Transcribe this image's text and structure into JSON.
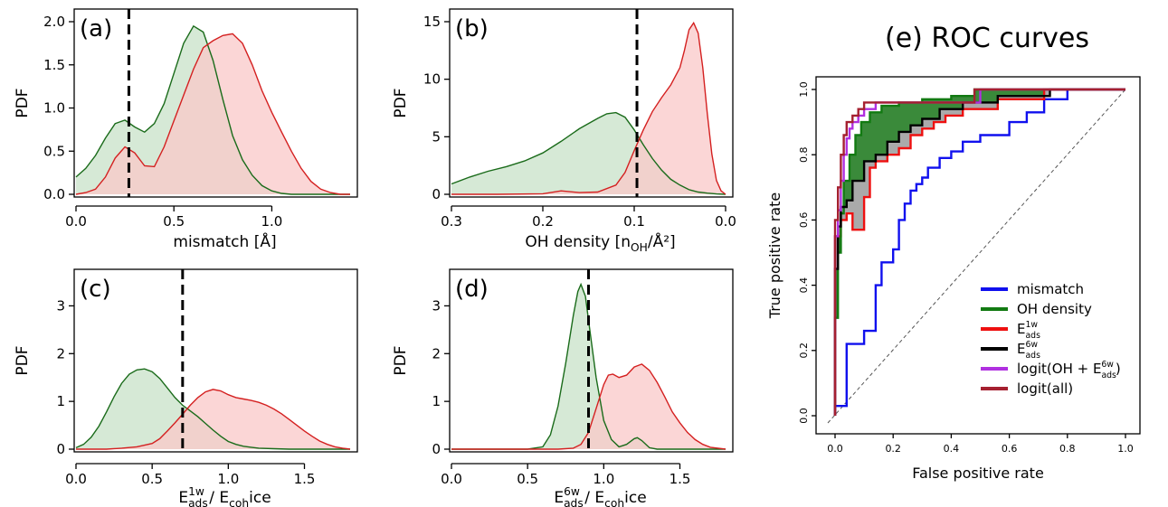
{
  "chart_data": [
    {
      "type": "area",
      "panel_label": "(a)",
      "xlabel": "mismatch [Å]",
      "ylabel": "PDF",
      "xlim": [
        0,
        1.4
      ],
      "ylim": [
        0,
        2.0
      ],
      "x_reversed": false,
      "xticks": [
        {
          "v": 0,
          "label": "0.0"
        },
        {
          "v": 0.5,
          "label": "0.5"
        },
        {
          "v": 1.0,
          "label": "1.0"
        }
      ],
      "yticks": [
        {
          "v": 0,
          "label": "0.0"
        },
        {
          "v": 0.5,
          "label": "0.5"
        },
        {
          "v": 1.0,
          "label": "1.0"
        },
        {
          "v": 1.5,
          "label": "1.5"
        },
        {
          "v": 2.0,
          "label": "2.0"
        }
      ],
      "threshold": 0.27,
      "series": [
        {
          "color": "#1a6b1a",
          "fill": "#c8e2c8",
          "x": [
            0,
            0.05,
            0.1,
            0.15,
            0.2,
            0.25,
            0.3,
            0.35,
            0.4,
            0.45,
            0.5,
            0.55,
            0.6,
            0.65,
            0.7,
            0.75,
            0.8,
            0.85,
            0.9,
            0.95,
            1.0,
            1.05,
            1.1,
            1.15,
            1.2,
            1.3,
            1.4
          ],
          "y": [
            0.2,
            0.3,
            0.45,
            0.65,
            0.82,
            0.86,
            0.78,
            0.72,
            0.82,
            1.05,
            1.4,
            1.75,
            1.95,
            1.88,
            1.55,
            1.1,
            0.68,
            0.4,
            0.22,
            0.1,
            0.04,
            0.01,
            0,
            0,
            0,
            0,
            0
          ]
        },
        {
          "color": "#d42020",
          "fill": "#f9c8c8",
          "x": [
            0,
            0.05,
            0.1,
            0.15,
            0.2,
            0.25,
            0.3,
            0.35,
            0.4,
            0.45,
            0.5,
            0.55,
            0.6,
            0.65,
            0.7,
            0.75,
            0.8,
            0.85,
            0.9,
            0.95,
            1.0,
            1.05,
            1.1,
            1.15,
            1.2,
            1.25,
            1.3,
            1.35,
            1.4
          ],
          "y": [
            0,
            0.02,
            0.06,
            0.2,
            0.42,
            0.55,
            0.48,
            0.33,
            0.32,
            0.55,
            0.85,
            1.15,
            1.45,
            1.7,
            1.78,
            1.84,
            1.86,
            1.75,
            1.5,
            1.2,
            0.95,
            0.72,
            0.5,
            0.3,
            0.15,
            0.06,
            0.02,
            0,
            0
          ]
        }
      ]
    },
    {
      "type": "area",
      "panel_label": "(b)",
      "xlabel": "OH density [n_OH/Å²]",
      "ylabel": "PDF",
      "xlim": [
        0.3,
        0.0
      ],
      "ylim": [
        0,
        15
      ],
      "x_reversed": true,
      "xticks": [
        {
          "v": 0.3,
          "label": "0.3"
        },
        {
          "v": 0.2,
          "label": "0.2"
        },
        {
          "v": 0.1,
          "label": "0.1"
        },
        {
          "v": 0.0,
          "label": "0.0"
        }
      ],
      "yticks": [
        {
          "v": 0,
          "label": "0"
        },
        {
          "v": 5,
          "label": "5"
        },
        {
          "v": 10,
          "label": "10"
        },
        {
          "v": 15,
          "label": "15"
        }
      ],
      "threshold": 0.097,
      "series": [
        {
          "color": "#1a6b1a",
          "fill": "#c8e2c8",
          "x": [
            0.3,
            0.28,
            0.26,
            0.24,
            0.22,
            0.2,
            0.18,
            0.16,
            0.14,
            0.13,
            0.12,
            0.11,
            0.1,
            0.09,
            0.08,
            0.07,
            0.06,
            0.05,
            0.04,
            0.03,
            0.02,
            0.01,
            0.0
          ],
          "y": [
            0.9,
            1.5,
            2.0,
            2.4,
            2.9,
            3.6,
            4.6,
            5.7,
            6.6,
            7.0,
            7.1,
            6.7,
            5.6,
            4.3,
            3.1,
            2.1,
            1.3,
            0.8,
            0.4,
            0.2,
            0.1,
            0.03,
            0
          ]
        },
        {
          "color": "#d42020",
          "fill": "#f9c8c8",
          "x": [
            0.3,
            0.25,
            0.2,
            0.18,
            0.16,
            0.14,
            0.12,
            0.11,
            0.1,
            0.09,
            0.08,
            0.07,
            0.06,
            0.05,
            0.045,
            0.04,
            0.035,
            0.03,
            0.025,
            0.02,
            0.015,
            0.01,
            0.005,
            0.0
          ],
          "y": [
            0,
            0,
            0.05,
            0.3,
            0.15,
            0.2,
            0.8,
            1.9,
            3.8,
            5.6,
            7.2,
            8.4,
            9.5,
            11.0,
            12.5,
            14.3,
            14.9,
            14.0,
            11.0,
            7.0,
            3.5,
            1.2,
            0.3,
            0
          ]
        }
      ]
    },
    {
      "type": "area",
      "panel_label": "(c)",
      "xlabel": "E_ads^1w / E_coh^ice",
      "ylabel": "PDF",
      "xlim": [
        0,
        1.8
      ],
      "ylim": [
        0,
        3.5
      ],
      "x_reversed": false,
      "xticks": [
        {
          "v": 0,
          "label": "0.0"
        },
        {
          "v": 0.5,
          "label": "0.5"
        },
        {
          "v": 1.0,
          "label": "1.0"
        },
        {
          "v": 1.5,
          "label": "1.5"
        }
      ],
      "yticks": [
        {
          "v": 0,
          "label": "0"
        },
        {
          "v": 1,
          "label": "1"
        },
        {
          "v": 2,
          "label": "2"
        },
        {
          "v": 3,
          "label": "3"
        }
      ],
      "threshold": 0.7,
      "series": [
        {
          "color": "#1a6b1a",
          "fill": "#c8e2c8",
          "x": [
            0,
            0.05,
            0.1,
            0.15,
            0.2,
            0.25,
            0.3,
            0.35,
            0.4,
            0.45,
            0.5,
            0.55,
            0.6,
            0.65,
            0.7,
            0.75,
            0.8,
            0.85,
            0.9,
            0.95,
            1.0,
            1.05,
            1.1,
            1.15,
            1.2,
            1.3,
            1.4,
            1.5,
            1.6,
            1.7,
            1.8
          ],
          "y": [
            0.03,
            0.1,
            0.25,
            0.48,
            0.78,
            1.1,
            1.38,
            1.57,
            1.66,
            1.68,
            1.62,
            1.48,
            1.28,
            1.08,
            0.92,
            0.8,
            0.68,
            0.54,
            0.4,
            0.27,
            0.16,
            0.1,
            0.06,
            0.04,
            0.02,
            0.01,
            0,
            0,
            0,
            0,
            0
          ]
        },
        {
          "color": "#d42020",
          "fill": "#f9c8c8",
          "x": [
            0,
            0.2,
            0.3,
            0.4,
            0.5,
            0.55,
            0.6,
            0.65,
            0.7,
            0.75,
            0.8,
            0.85,
            0.9,
            0.95,
            1.0,
            1.05,
            1.1,
            1.15,
            1.2,
            1.25,
            1.3,
            1.35,
            1.4,
            1.45,
            1.5,
            1.55,
            1.6,
            1.65,
            1.7,
            1.75,
            1.8
          ],
          "y": [
            0,
            0,
            0.02,
            0.05,
            0.12,
            0.22,
            0.38,
            0.55,
            0.73,
            0.92,
            1.08,
            1.2,
            1.25,
            1.22,
            1.14,
            1.08,
            1.05,
            1.02,
            0.98,
            0.92,
            0.84,
            0.74,
            0.62,
            0.5,
            0.38,
            0.27,
            0.17,
            0.1,
            0.05,
            0.02,
            0
          ]
        }
      ]
    },
    {
      "type": "area",
      "panel_label": "(d)",
      "xlabel": "E_ads^6w / E_coh^ice",
      "ylabel": "PDF",
      "xlim": [
        0,
        1.8
      ],
      "ylim": [
        0,
        3.5
      ],
      "x_reversed": false,
      "xticks": [
        {
          "v": 0,
          "label": "0.0"
        },
        {
          "v": 0.5,
          "label": "0.5"
        },
        {
          "v": 1.0,
          "label": "1.0"
        },
        {
          "v": 1.5,
          "label": "1.5"
        }
      ],
      "yticks": [
        {
          "v": 0,
          "label": "0"
        },
        {
          "v": 1,
          "label": "1"
        },
        {
          "v": 2,
          "label": "2"
        },
        {
          "v": 3,
          "label": "3"
        }
      ],
      "threshold": 0.9,
      "series": [
        {
          "color": "#1a6b1a",
          "fill": "#c8e2c8",
          "x": [
            0,
            0.5,
            0.6,
            0.65,
            0.7,
            0.75,
            0.8,
            0.83,
            0.85,
            0.88,
            0.9,
            0.95,
            1.0,
            1.05,
            1.1,
            1.15,
            1.2,
            1.22,
            1.25,
            1.3,
            1.35,
            1.4,
            1.6,
            1.8
          ],
          "y": [
            0,
            0,
            0.05,
            0.3,
            0.9,
            1.8,
            2.8,
            3.3,
            3.45,
            3.2,
            2.7,
            1.5,
            0.6,
            0.2,
            0.05,
            0.1,
            0.22,
            0.24,
            0.18,
            0.03,
            0,
            0,
            0,
            0
          ]
        },
        {
          "color": "#d42020",
          "fill": "#f9c8c8",
          "x": [
            0,
            0.7,
            0.8,
            0.85,
            0.9,
            0.95,
            1.0,
            1.03,
            1.06,
            1.1,
            1.15,
            1.2,
            1.25,
            1.3,
            1.35,
            1.4,
            1.45,
            1.5,
            1.55,
            1.6,
            1.65,
            1.7,
            1.8
          ],
          "y": [
            0,
            0,
            0.02,
            0.1,
            0.35,
            0.85,
            1.35,
            1.55,
            1.57,
            1.5,
            1.55,
            1.72,
            1.78,
            1.65,
            1.4,
            1.1,
            0.78,
            0.55,
            0.35,
            0.2,
            0.1,
            0.04,
            0
          ]
        }
      ]
    },
    {
      "type": "line",
      "title": "(e) ROC curves",
      "xlabel": "False positive rate",
      "ylabel": "True positive rate",
      "xlim": [
        0,
        1
      ],
      "ylim": [
        0,
        1
      ],
      "ticks": [
        {
          "v": 0,
          "label": "0.0"
        },
        {
          "v": 0.2,
          "label": "0.2"
        },
        {
          "v": 0.4,
          "label": "0.4"
        },
        {
          "v": 0.6,
          "label": "0.6"
        },
        {
          "v": 0.8,
          "label": "0.8"
        },
        {
          "v": 1.0,
          "label": "1.0"
        }
      ],
      "series": [
        {
          "name": "mismatch",
          "color": "#1010ee",
          "x": [
            0,
            0,
            0.04,
            0.04,
            0.1,
            0.1,
            0.14,
            0.14,
            0.16,
            0.16,
            0.2,
            0.2,
            0.22,
            0.22,
            0.24,
            0.24,
            0.26,
            0.26,
            0.28,
            0.28,
            0.3,
            0.3,
            0.32,
            0.32,
            0.36,
            0.36,
            0.4,
            0.4,
            0.44,
            0.44,
            0.5,
            0.5,
            0.54,
            0.54,
            0.6,
            0.6,
            0.66,
            0.66,
            0.72,
            0.72,
            0.8,
            0.8,
            1.0
          ],
          "y": [
            0,
            0.03,
            0.03,
            0.22,
            0.22,
            0.26,
            0.26,
            0.4,
            0.4,
            0.47,
            0.47,
            0.51,
            0.51,
            0.6,
            0.6,
            0.65,
            0.65,
            0.69,
            0.69,
            0.71,
            0.71,
            0.73,
            0.73,
            0.76,
            0.76,
            0.79,
            0.79,
            0.81,
            0.81,
            0.84,
            0.84,
            0.86,
            0.86,
            0.86,
            0.86,
            0.9,
            0.9,
            0.93,
            0.93,
            0.97,
            0.97,
            1.0,
            1.0
          ]
        },
        {
          "name": "OH density",
          "color": "#127a12",
          "x": [
            0,
            0,
            0.01,
            0.01,
            0.02,
            0.02,
            0.03,
            0.03,
            0.05,
            0.05,
            0.07,
            0.07,
            0.09,
            0.09,
            0.12,
            0.12,
            0.16,
            0.16,
            0.22,
            0.22,
            0.3,
            0.3,
            0.4,
            0.4,
            0.48,
            0.48,
            1.0
          ],
          "y": [
            0,
            0.3,
            0.3,
            0.5,
            0.5,
            0.62,
            0.62,
            0.72,
            0.72,
            0.8,
            0.8,
            0.86,
            0.86,
            0.9,
            0.9,
            0.93,
            0.93,
            0.95,
            0.95,
            0.96,
            0.96,
            0.97,
            0.97,
            0.98,
            0.98,
            1.0,
            1.0
          ]
        },
        {
          "name": "E_ads^1w",
          "color": "#ee1010",
          "x": [
            0,
            0,
            0.02,
            0.02,
            0.04,
            0.04,
            0.06,
            0.06,
            0.1,
            0.1,
            0.12,
            0.12,
            0.14,
            0.14,
            0.18,
            0.18,
            0.22,
            0.22,
            0.26,
            0.26,
            0.3,
            0.3,
            0.34,
            0.34,
            0.38,
            0.38,
            0.44,
            0.44,
            0.56,
            0.56,
            0.72,
            0.72,
            1.0
          ],
          "y": [
            0,
            0.55,
            0.55,
            0.6,
            0.6,
            0.62,
            0.62,
            0.57,
            0.57,
            0.67,
            0.67,
            0.76,
            0.76,
            0.78,
            0.78,
            0.8,
            0.8,
            0.82,
            0.82,
            0.86,
            0.86,
            0.88,
            0.88,
            0.9,
            0.9,
            0.92,
            0.92,
            0.94,
            0.94,
            0.97,
            0.97,
            1.0,
            1.0
          ]
        },
        {
          "name": "E_ads^6w",
          "color": "#000000",
          "x": [
            0,
            0,
            0.01,
            0.01,
            0.02,
            0.02,
            0.04,
            0.04,
            0.06,
            0.06,
            0.1,
            0.1,
            0.14,
            0.14,
            0.18,
            0.18,
            0.22,
            0.22,
            0.26,
            0.26,
            0.3,
            0.3,
            0.36,
            0.36,
            0.44,
            0.44,
            0.56,
            0.56,
            0.74,
            0.74,
            1.0
          ],
          "y": [
            0,
            0.45,
            0.45,
            0.58,
            0.58,
            0.64,
            0.64,
            0.66,
            0.66,
            0.72,
            0.72,
            0.78,
            0.78,
            0.8,
            0.8,
            0.84,
            0.84,
            0.87,
            0.87,
            0.89,
            0.89,
            0.91,
            0.91,
            0.94,
            0.94,
            0.96,
            0.96,
            0.98,
            0.98,
            1.0,
            1.0
          ]
        },
        {
          "name": "logit(OH + E_ads^6w)",
          "color": "#b030e0",
          "x": [
            0,
            0,
            0.01,
            0.01,
            0.02,
            0.02,
            0.03,
            0.03,
            0.04,
            0.04,
            0.05,
            0.05,
            0.06,
            0.06,
            0.08,
            0.08,
            0.1,
            0.1,
            0.14,
            0.14,
            0.5,
            0.5,
            1.0
          ],
          "y": [
            0,
            0.55,
            0.55,
            0.63,
            0.63,
            0.72,
            0.72,
            0.8,
            0.8,
            0.85,
            0.85,
            0.88,
            0.88,
            0.9,
            0.9,
            0.92,
            0.92,
            0.94,
            0.94,
            0.96,
            0.96,
            1.0,
            1.0
          ]
        },
        {
          "name": "logit(all)",
          "color": "#a52030",
          "x": [
            0,
            0,
            0.01,
            0.01,
            0.02,
            0.02,
            0.03,
            0.03,
            0.04,
            0.04,
            0.06,
            0.06,
            0.08,
            0.08,
            0.1,
            0.1,
            0.12,
            0.12,
            0.48,
            0.48,
            1.0
          ],
          "y": [
            0,
            0.6,
            0.6,
            0.7,
            0.7,
            0.8,
            0.8,
            0.86,
            0.86,
            0.9,
            0.9,
            0.92,
            0.92,
            0.94,
            0.94,
            0.96,
            0.96,
            0.96,
            0.96,
            1.0,
            1.0
          ]
        }
      ]
    }
  ]
}
